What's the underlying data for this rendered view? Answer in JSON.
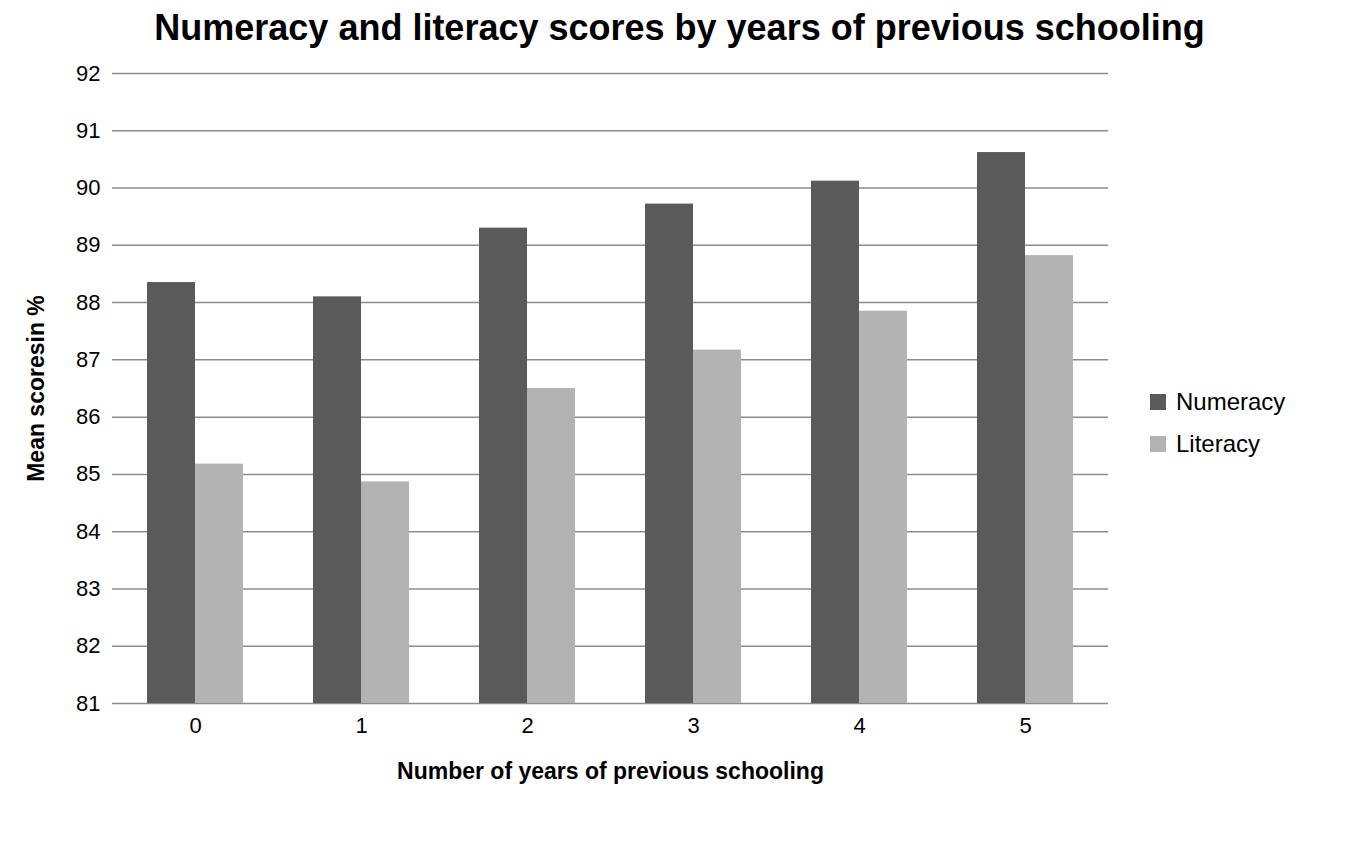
{
  "chart_data": {
    "type": "bar",
    "title": "Numeracy and literacy scores by years of previous schooling",
    "x_label": "Number of years of previous schooling",
    "y_label": "Mean scoresin %",
    "categories": [
      "0",
      "1",
      "2",
      "3",
      "4",
      "5"
    ],
    "series": [
      {
        "name": "Numeracy",
        "color": "#5a5a5a",
        "values": [
          88.35,
          88.1,
          89.3,
          89.72,
          90.12,
          90.62
        ]
      },
      {
        "name": "Literacy",
        "color": "#b3b3b3",
        "values": [
          85.18,
          84.87,
          86.5,
          87.17,
          87.85,
          88.82
        ]
      }
    ],
    "ylim": [
      81,
      92
    ],
    "yticks": [
      81,
      82,
      83,
      84,
      85,
      86,
      87,
      88,
      89,
      90,
      91,
      92
    ],
    "grid": true,
    "legend": "right"
  }
}
